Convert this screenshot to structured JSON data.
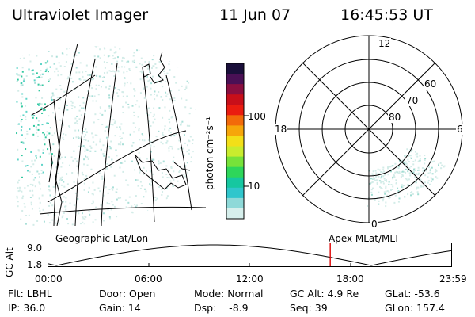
{
  "header": {
    "instrument": "Ultraviolet Imager",
    "date": "11 Jun 07",
    "time": "16:45:53 UT"
  },
  "colorbar": {
    "label": "photon cm⁻²s⁻¹",
    "ticks": [
      "100",
      "10"
    ],
    "colors": [
      "#1a0f3a",
      "#4a1055",
      "#8a0f40",
      "#c80f1a",
      "#ea1c10",
      "#f26a0a",
      "#f6a60a",
      "#f3df18",
      "#c9ec2e",
      "#77e23a",
      "#2ed65a",
      "#16c7a0",
      "#30c6cc",
      "#8ed9d8",
      "#d6efec"
    ]
  },
  "polar": {
    "mlt_labels": [
      "12",
      "18",
      "6",
      "0"
    ],
    "lat_labels": [
      "60",
      "70",
      "80"
    ]
  },
  "timeline": {
    "left_label": "Geographic Lat/Lon",
    "right_label": "Apex MLat/MLT",
    "y_title": "GC Alt",
    "y_ticks": [
      "9.0",
      "1.8"
    ],
    "x_ticks": [
      "00:00",
      "06:00",
      "12:00",
      "18:00",
      "23:59"
    ],
    "marker_time": "16:45",
    "marker_color": "#e01010"
  },
  "info": {
    "row1": [
      "Flt: LBHL",
      "Door: Open",
      "Mode: Normal",
      "GC Alt: 4.9 Re",
      "GLat: -53.6"
    ],
    "row2": [
      "IP: 36.0",
      "Gain: 14",
      "Dsp:    -8.9",
      "Seq: 39",
      "GLon: 157.4"
    ]
  }
}
